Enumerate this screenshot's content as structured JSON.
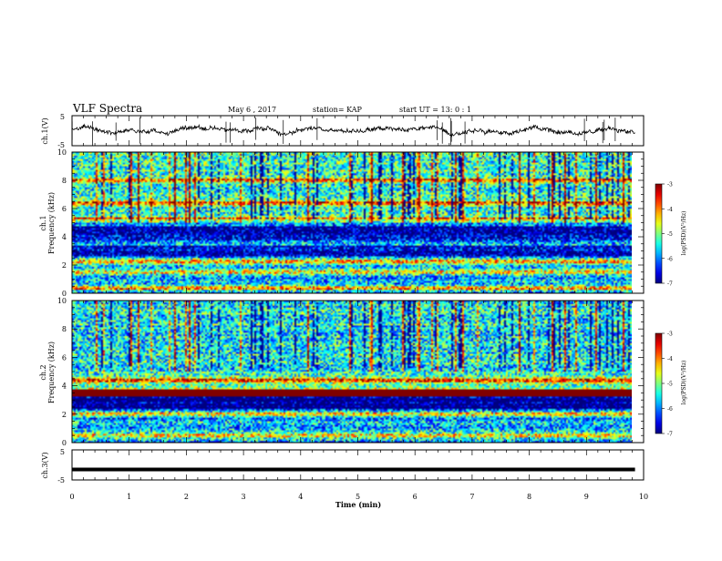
{
  "header": {
    "title": "VLF Spectra",
    "date": "May 6  , 2017",
    "station": "station= KAP",
    "start": "start  UT  =   13: 0   : 1"
  },
  "chart_data": [
    {
      "type": "line",
      "panel": "ch1-waveform",
      "ylabel": "ch.1(V)",
      "ylim": [
        -5,
        5
      ],
      "yticks": [
        "5",
        "-5"
      ],
      "xlim": [
        0,
        10
      ],
      "mean_level": 0.3,
      "noise_amplitude": 1.2,
      "data_extent_min": 9.85
    },
    {
      "type": "heatmap",
      "panel": "ch1-spectrogram",
      "ylabel": "ch.1\nFrequency (kHz)",
      "ylim": [
        0,
        10
      ],
      "yticks": [
        "0",
        "2",
        "4",
        "6",
        "8",
        "10"
      ],
      "xlim": [
        0,
        10
      ],
      "colorbar": {
        "label": "log(PSD)(V²/Hz)",
        "range": [
          -7,
          -3
        ],
        "ticks": [
          "-3",
          "-4",
          "-5",
          "-6",
          "-7"
        ]
      },
      "strong_bands_khz": [
        0.4,
        1.5,
        2.2,
        5.2,
        6.4,
        8.0
      ],
      "quiet_bands_khz": [
        [
          2.6,
          3.4
        ],
        [
          3.8,
          4.8
        ]
      ]
    },
    {
      "type": "heatmap",
      "panel": "ch2-spectrogram",
      "ylabel": "ch.2\nFrequency (kHz)",
      "ylim": [
        0,
        10
      ],
      "yticks": [
        "0",
        "2",
        "4",
        "6",
        "8",
        "10"
      ],
      "xlim": [
        0,
        10
      ],
      "colorbar": {
        "label": "log(PSD)(V²/Hz)",
        "range": [
          -7,
          -3
        ],
        "ticks": [
          "-3",
          "-4",
          "-5",
          "-6",
          "-7"
        ]
      },
      "strong_bands_khz": [
        3.4,
        3.6,
        4.4,
        2.0,
        0.5
      ],
      "quiet_bands_khz": [
        [
          2.4,
          3.2
        ]
      ]
    },
    {
      "type": "line",
      "panel": "ch3-waveform",
      "ylabel": "ch.3(V)",
      "ylim": [
        -5,
        5
      ],
      "yticks": [
        "5",
        "-5"
      ],
      "xlim": [
        0,
        10
      ],
      "constant_value": -1.5,
      "xlabel": "Time  (min)",
      "xticks": [
        "0",
        "1",
        "2",
        "3",
        "4",
        "5",
        "6",
        "7",
        "8",
        "9",
        "10"
      ]
    }
  ]
}
